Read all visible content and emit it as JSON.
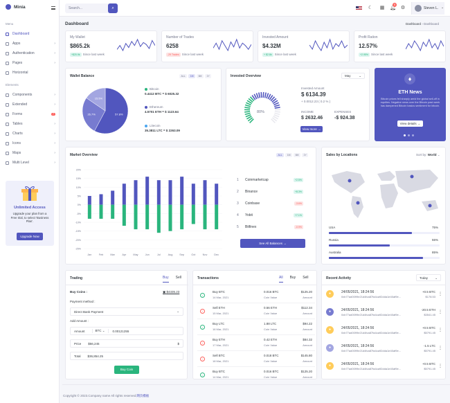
{
  "app": {
    "name": "Minia"
  },
  "sidebar": {
    "menu_title": "Menu",
    "items": [
      {
        "label": "Dashboard"
      },
      {
        "label": "Apps"
      },
      {
        "label": "Authentication"
      },
      {
        "label": "Pages"
      },
      {
        "label": "Horizontal"
      }
    ],
    "elements_title": "Elements",
    "elements": [
      {
        "label": "Components"
      },
      {
        "label": "Extended"
      },
      {
        "label": "Forms"
      },
      {
        "label": "Tables"
      },
      {
        "label": "Charts"
      },
      {
        "label": "Icons"
      },
      {
        "label": "Maps"
      },
      {
        "label": "Multi Level"
      }
    ],
    "forms_badge": "7",
    "promo": {
      "title": "Unlimited Access",
      "text": "Upgrade your plan from a Free trial, to select 'Business Plan'.",
      "button": "Upgrade Now"
    }
  },
  "topbar": {
    "search_placeholder": "Search...",
    "notification_count": "5",
    "user_name": "Steven L."
  },
  "page": {
    "title": "Dashboard",
    "breadcrumb_root": "Dashboard",
    "breadcrumb_current": "Dashboard"
  },
  "stats": [
    {
      "label": "My Wallet",
      "value": "$865.2k",
      "change": "+$20.9k",
      "change_type": "up",
      "note": "Since last week",
      "spark": [
        8,
        12,
        7,
        14,
        10,
        16,
        12,
        18,
        11,
        15,
        13,
        9,
        17,
        12
      ]
    },
    {
      "label": "Number of Trades",
      "value": "6258",
      "change": "-29 Trades",
      "change_type": "down",
      "note": "Since last week",
      "spark": [
        10,
        14,
        9,
        16,
        12,
        8,
        15,
        11,
        17,
        10,
        14,
        12,
        9,
        13
      ]
    },
    {
      "label": "Invested Amount",
      "value": "$4.32M",
      "change": "+ $2.8k",
      "change_type": "up",
      "note": "Since last week",
      "spark": [
        12,
        9,
        15,
        11,
        8,
        14,
        10,
        16,
        9,
        13,
        11,
        15,
        10,
        12
      ]
    },
    {
      "label": "Profit Ration",
      "value": "12.57%",
      "change": "+2.95%",
      "change_type": "up",
      "note": "Since last week",
      "spark": [
        9,
        13,
        10,
        15,
        12,
        8,
        14,
        11,
        16,
        10,
        13,
        9,
        15,
        11
      ]
    }
  ],
  "wallet": {
    "title": "Wallet Balance",
    "ranges": [
      "ALL",
      "1M",
      "6M",
      "1Y"
    ],
    "active_range": "1M",
    "slices": [
      {
        "label": "Bitcoin",
        "pct": "57.8%",
        "value": 57.8,
        "color": "#5156be"
      },
      {
        "label": "Ethereum",
        "pct": "26.7%",
        "value": 26.7,
        "color": "#777bd0"
      },
      {
        "label": "Litecoin",
        "pct": "15.5%",
        "value": 15.5,
        "color": "#a3a6e1"
      }
    ],
    "legend": [
      {
        "name": "Bitcoin",
        "amount": "0.4412 BTC = $ 6025.32",
        "color": "#2ab57d"
      },
      {
        "name": "Ethereum",
        "amount": "4.5701 ETH = $ 1123.64",
        "color": "#5156be"
      },
      {
        "name": "Litecoin",
        "amount": "35.3811 LTC = $ 2263.09",
        "color": "#4ba6ef"
      }
    ]
  },
  "invested": {
    "title": "Invested Overview",
    "month": "May",
    "gauge": "80%",
    "gauge_value": 80,
    "amount_label": "Invested Amount",
    "amount": "$ 6134.39",
    "amount_change": "+ 0.0012.23 ( 0.2 % )",
    "income_label": "INCOME",
    "income": "$ 2632.46",
    "expenses_label": "EXPENSES",
    "expenses": "-$ 924.38",
    "button": "View more"
  },
  "news": {
    "title": "ETH News",
    "text": "Bitcoin prices fell sharply amid the global sell-off in equities. Negative news over the Bitcoin past week has dampened Bitcoin basics sentiment for bitcoin.",
    "button": "View details"
  },
  "market": {
    "title": "Market Overview",
    "ranges": [
      "ALL",
      "1M",
      "6M",
      "1Y"
    ],
    "active_range": "ALL",
    "chart_data": {
      "type": "bar",
      "categories": [
        "Jan",
        "Feb",
        "Mar",
        "Apr",
        "May",
        "Jun",
        "Jul",
        "Aug",
        "Sep",
        "Oct",
        "Nov",
        "Dec"
      ],
      "series": [
        {
          "name": "Profit",
          "color": "#5156be",
          "values": [
            5,
            6,
            8,
            12,
            14,
            16,
            14,
            14,
            16,
            12,
            14,
            12
          ]
        },
        {
          "name": "Loss",
          "color": "#2ab57d",
          "values": [
            -8,
            -8,
            -8,
            -12,
            -14,
            -14,
            -16,
            -15,
            -14,
            -11,
            -14,
            -14
          ]
        }
      ],
      "yticks": [
        "20%",
        "15%",
        "10%",
        "5%",
        "0%",
        "-5%",
        "-10%",
        "-15%",
        "-20%",
        "-25%"
      ],
      "ylim": [
        -25,
        20
      ]
    },
    "exchanges": [
      {
        "rank": "1",
        "name": "Coinmarketcap",
        "change": "+2.5%",
        "type": "up"
      },
      {
        "rank": "2",
        "name": "Binance",
        "change": "+8.3%",
        "type": "up"
      },
      {
        "rank": "3",
        "name": "Coinbase",
        "change": "-3.6%",
        "type": "down"
      },
      {
        "rank": "4",
        "name": "Yobit",
        "change": "+7.1%",
        "type": "up"
      },
      {
        "rank": "5",
        "name": "Bitfinex",
        "change": "-0.9%",
        "type": "down"
      }
    ],
    "button": "See All Balances"
  },
  "sales": {
    "title": "Sales by Locations",
    "sort_label": "Sort by:",
    "sort_value": "World",
    "locations": [
      {
        "name": "USA",
        "pct": "75%",
        "value": 75
      },
      {
        "name": "Russia",
        "pct": "55%",
        "value": 55
      },
      {
        "name": "Australia",
        "pct": "85%",
        "value": 85
      }
    ]
  },
  "trading": {
    "title": "Trading",
    "tabs": [
      "Buy",
      "Sell"
    ],
    "active_tab": "Buy",
    "coin_label": "Buy Coins :",
    "wallet_amount": "$4335.23",
    "method_label": "Payment method :",
    "method": "Direct Bank Payment",
    "add_label": "Add Amount :",
    "amount_label": "Amount",
    "currency": "BTC",
    "amount": "0.00121255",
    "price_label": "Price",
    "price": "$56,245",
    "price_unit": "$",
    "total_label": "Total",
    "total": "$36,854.25",
    "button": "Buy Coin"
  },
  "transactions": {
    "title": "Transactions",
    "tabs": [
      "All",
      "Buy",
      "Sell"
    ],
    "active_tab": "All",
    "rows": [
      {
        "type": "Buy BTC",
        "date": "14 Mar, 2021",
        "amount": "0.016 BTC",
        "amount_sub": "Coin Value",
        "usd": "$125.20",
        "usd_sub": "Amount",
        "dir": "in"
      },
      {
        "type": "Sell ETH",
        "date": "15 Mar, 2021",
        "amount": "0.56 ETH",
        "amount_sub": "Coin Value",
        "usd": "$112.34",
        "usd_sub": "Amount",
        "dir": "out"
      },
      {
        "type": "Buy LTC",
        "date": "16 Mar, 2021",
        "amount": "1.88 LTC",
        "amount_sub": "Coin Value",
        "usd": "$94.22",
        "usd_sub": "Amount",
        "dir": "in"
      },
      {
        "type": "Buy ETH",
        "date": "17 Mar, 2021",
        "amount": "0.42 ETH",
        "amount_sub": "Coin Value",
        "usd": "$84.32",
        "usd_sub": "Amount",
        "dir": "out"
      },
      {
        "type": "Sell BTC",
        "date": "18 Mar, 2021",
        "amount": "0.018 BTC",
        "amount_sub": "Coin Value",
        "usd": "$145.80",
        "usd_sub": "Amount",
        "dir": "out"
      },
      {
        "type": "Buy BTC",
        "date": "14 Mar, 2021",
        "amount": "0.016 BTC",
        "amount_sub": "Coin Value",
        "usd": "$125.20",
        "usd_sub": "Amount",
        "dir": "in"
      }
    ]
  },
  "activity": {
    "title": "Recent Activity",
    "filter": "Today",
    "rows": [
      {
        "date": "24/05/2021, 18:24:56",
        "hash": "0xb77ad0099e21d4fca87fa4ca92dda1e40af9e...",
        "value": "+0.5 BTC",
        "usd": "$178.53",
        "color": "#ffcc5a"
      },
      {
        "date": "24/05/2021, 18:24:56",
        "hash": "0xb77ad0099e21d4fca87fa4ca92dda1e40af9e...",
        "value": "-20.5 ETH",
        "usd": "$3541.45",
        "color": "#777bd0"
      },
      {
        "date": "24/05/2021, 18:24:56",
        "hash": "0xb77ad0099e21d4fca87fa4ca92dda1e40af9e...",
        "value": "+0.5 BTC",
        "usd": "$5791.45",
        "color": "#ffcc5a"
      },
      {
        "date": "24/05/2021, 18:24:56",
        "hash": "0xb77ad0099e21d4fca87fa4ca92dda1e40af9e...",
        "value": "-1.5 LTC",
        "usd": "$5791.45",
        "color": "#a3a6e1"
      },
      {
        "date": "24/05/2021, 18:24:56",
        "hash": "0xb77ad0099e21d4fca87fa4ca92dda1e40af9e...",
        "value": "+0.5 BTC",
        "usd": "$5791.45",
        "color": "#ffcc5a"
      }
    ]
  },
  "footer": {
    "text": "Copyright © 2023.Company name All rights reserved.",
    "link": "网页模板"
  }
}
